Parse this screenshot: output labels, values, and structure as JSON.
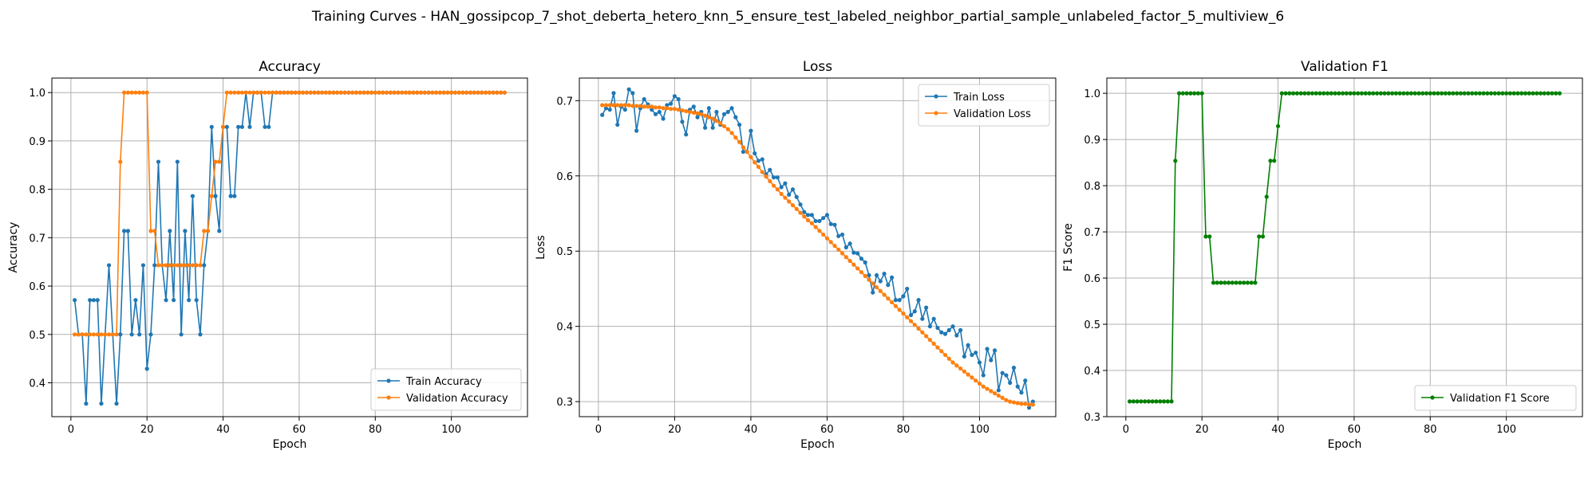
{
  "suptitle": "Training Curves - HAN_gossipcop_7_shot_deberta_hetero_knn_5_ensure_test_labeled_neighbor_partial_sample_unlabeled_factor_5_multiview_6",
  "colors": {
    "blue": "#1f77b4",
    "orange": "#ff7f0e",
    "green": "#008000",
    "grid": "#b0b0b0"
  },
  "chart_data": [
    {
      "type": "line",
      "title": "Accuracy",
      "xlabel": "Epoch",
      "ylabel": "Accuracy",
      "xlim": [
        -5,
        120
      ],
      "ylim": [
        0.33,
        1.03
      ],
      "xticks": [
        0,
        20,
        40,
        60,
        80,
        100
      ],
      "yticks": [
        0.4,
        0.5,
        0.6,
        0.7,
        0.8,
        0.9,
        1.0
      ],
      "ytick_labels": [
        "0.4",
        "0.5",
        "0.6",
        "0.7",
        "0.8",
        "0.9",
        "1.0"
      ],
      "grid": true,
      "legend": "lower-right",
      "series": [
        {
          "name": "Train Accuracy",
          "color": "#1f77b4",
          "x_start": 1,
          "values": [
            0.571,
            0.5,
            0.5,
            0.357,
            0.571,
            0.571,
            0.571,
            0.357,
            0.5,
            0.643,
            0.5,
            0.357,
            0.5,
            0.714,
            0.714,
            0.5,
            0.571,
            0.5,
            0.643,
            0.429,
            0.5,
            0.643,
            0.857,
            0.643,
            0.571,
            0.714,
            0.571,
            0.857,
            0.5,
            0.714,
            0.571,
            0.786,
            0.571,
            0.5,
            0.643,
            0.714,
            0.929,
            0.786,
            0.714,
            0.929,
            0.929,
            0.786,
            0.786,
            0.929,
            0.929,
            1.0,
            0.929,
            1.0,
            1.0,
            1.0,
            0.929,
            0.929,
            1.0,
            1.0,
            1.0,
            1.0,
            1.0,
            1.0,
            1.0,
            1.0,
            1.0,
            1.0,
            1.0,
            1.0,
            1.0,
            1.0,
            1.0,
            1.0,
            1.0,
            1.0,
            1.0,
            1.0,
            1.0,
            1.0,
            1.0,
            1.0,
            1.0,
            1.0,
            1.0,
            1.0,
            1.0,
            1.0,
            1.0,
            1.0,
            1.0,
            1.0,
            1.0,
            1.0,
            1.0,
            1.0,
            1.0,
            1.0,
            1.0,
            1.0,
            1.0,
            1.0,
            1.0,
            1.0,
            1.0,
            1.0,
            1.0,
            1.0,
            1.0,
            1.0,
            1.0,
            1.0,
            1.0,
            1.0,
            1.0,
            1.0,
            1.0,
            1.0,
            1.0,
            1.0
          ]
        },
        {
          "name": "Validation Accuracy",
          "color": "#ff7f0e",
          "x_start": 1,
          "values": [
            0.5,
            0.5,
            0.5,
            0.5,
            0.5,
            0.5,
            0.5,
            0.5,
            0.5,
            0.5,
            0.5,
            0.5,
            0.857,
            1.0,
            1.0,
            1.0,
            1.0,
            1.0,
            1.0,
            1.0,
            0.714,
            0.714,
            0.643,
            0.643,
            0.643,
            0.643,
            0.643,
            0.643,
            0.643,
            0.643,
            0.643,
            0.643,
            0.643,
            0.643,
            0.714,
            0.714,
            0.786,
            0.857,
            0.857,
            0.929,
            1.0,
            1.0,
            1.0,
            1.0,
            1.0,
            1.0,
            1.0,
            1.0,
            1.0,
            1.0,
            1.0,
            1.0,
            1.0,
            1.0,
            1.0,
            1.0,
            1.0,
            1.0,
            1.0,
            1.0,
            1.0,
            1.0,
            1.0,
            1.0,
            1.0,
            1.0,
            1.0,
            1.0,
            1.0,
            1.0,
            1.0,
            1.0,
            1.0,
            1.0,
            1.0,
            1.0,
            1.0,
            1.0,
            1.0,
            1.0,
            1.0,
            1.0,
            1.0,
            1.0,
            1.0,
            1.0,
            1.0,
            1.0,
            1.0,
            1.0,
            1.0,
            1.0,
            1.0,
            1.0,
            1.0,
            1.0,
            1.0,
            1.0,
            1.0,
            1.0,
            1.0,
            1.0,
            1.0,
            1.0,
            1.0,
            1.0,
            1.0,
            1.0,
            1.0,
            1.0,
            1.0,
            1.0,
            1.0,
            1.0
          ]
        }
      ]
    },
    {
      "type": "line",
      "title": "Loss",
      "xlabel": "Epoch",
      "ylabel": "Loss",
      "xlim": [
        -5,
        120
      ],
      "ylim": [
        0.28,
        0.73
      ],
      "xticks": [
        0,
        20,
        40,
        60,
        80,
        100
      ],
      "yticks": [
        0.3,
        0.4,
        0.5,
        0.6,
        0.7
      ],
      "ytick_labels": [
        "0.3",
        "0.4",
        "0.5",
        "0.6",
        "0.7"
      ],
      "grid": true,
      "legend": "upper-right",
      "series": [
        {
          "name": "Train Loss",
          "color": "#1f77b4",
          "x_start": 1,
          "values": [
            0.681,
            0.69,
            0.688,
            0.71,
            0.668,
            0.692,
            0.688,
            0.715,
            0.71,
            0.66,
            0.69,
            0.702,
            0.695,
            0.688,
            0.682,
            0.685,
            0.676,
            0.694,
            0.696,
            0.706,
            0.702,
            0.672,
            0.655,
            0.688,
            0.692,
            0.678,
            0.685,
            0.664,
            0.69,
            0.664,
            0.685,
            0.668,
            0.682,
            0.685,
            0.69,
            0.678,
            0.668,
            0.632,
            0.632,
            0.66,
            0.63,
            0.62,
            0.622,
            0.602,
            0.608,
            0.598,
            0.598,
            0.585,
            0.59,
            0.575,
            0.582,
            0.572,
            0.562,
            0.552,
            0.548,
            0.548,
            0.54,
            0.54,
            0.544,
            0.548,
            0.536,
            0.535,
            0.52,
            0.522,
            0.505,
            0.51,
            0.498,
            0.497,
            0.49,
            0.485,
            0.468,
            0.445,
            0.468,
            0.46,
            0.47,
            0.455,
            0.465,
            0.435,
            0.435,
            0.44,
            0.45,
            0.415,
            0.42,
            0.435,
            0.41,
            0.425,
            0.4,
            0.41,
            0.398,
            0.392,
            0.39,
            0.395,
            0.4,
            0.388,
            0.395,
            0.36,
            0.375,
            0.362,
            0.365,
            0.352,
            0.335,
            0.37,
            0.355,
            0.368,
            0.315,
            0.338,
            0.335,
            0.325,
            0.345,
            0.32,
            0.312,
            0.328,
            0.292,
            0.3
          ]
        },
        {
          "name": "Validation Loss",
          "color": "#ff7f0e",
          "x_start": 1,
          "values": [
            0.694,
            0.694,
            0.694,
            0.694,
            0.694,
            0.694,
            0.694,
            0.694,
            0.693,
            0.693,
            0.693,
            0.692,
            0.692,
            0.692,
            0.691,
            0.691,
            0.69,
            0.69,
            0.689,
            0.689,
            0.688,
            0.687,
            0.686,
            0.685,
            0.684,
            0.683,
            0.682,
            0.68,
            0.678,
            0.676,
            0.673,
            0.67,
            0.666,
            0.662,
            0.657,
            0.651,
            0.645,
            0.638,
            0.632,
            0.625,
            0.618,
            0.612,
            0.605,
            0.599,
            0.593,
            0.587,
            0.582,
            0.576,
            0.571,
            0.566,
            0.561,
            0.556,
            0.551,
            0.546,
            0.541,
            0.537,
            0.532,
            0.527,
            0.522,
            0.517,
            0.512,
            0.507,
            0.502,
            0.497,
            0.492,
            0.487,
            0.482,
            0.477,
            0.472,
            0.467,
            0.462,
            0.457,
            0.452,
            0.447,
            0.442,
            0.437,
            0.432,
            0.427,
            0.422,
            0.417,
            0.412,
            0.407,
            0.402,
            0.397,
            0.392,
            0.387,
            0.382,
            0.377,
            0.372,
            0.367,
            0.362,
            0.357,
            0.352,
            0.348,
            0.344,
            0.34,
            0.336,
            0.332,
            0.328,
            0.324,
            0.32,
            0.317,
            0.314,
            0.311,
            0.308,
            0.305,
            0.302,
            0.3,
            0.299,
            0.298,
            0.297,
            0.297,
            0.296,
            0.296
          ]
        }
      ]
    },
    {
      "type": "line",
      "title": "Validation F1",
      "xlabel": "Epoch",
      "ylabel": "F1 Score",
      "xlim": [
        -5,
        120
      ],
      "ylim": [
        0.3,
        1.033
      ],
      "xticks": [
        0,
        20,
        40,
        60,
        80,
        100
      ],
      "yticks": [
        0.3,
        0.4,
        0.5,
        0.6,
        0.7,
        0.8,
        0.9,
        1.0
      ],
      "ytick_labels": [
        "0.3",
        "0.4",
        "0.5",
        "0.6",
        "0.7",
        "0.8",
        "0.9",
        "1.0"
      ],
      "grid": true,
      "legend": "lower-right",
      "series": [
        {
          "name": "Validation F1 Score",
          "color": "#008000",
          "x_start": 1,
          "values": [
            0.333,
            0.333,
            0.333,
            0.333,
            0.333,
            0.333,
            0.333,
            0.333,
            0.333,
            0.333,
            0.333,
            0.333,
            0.854,
            1.0,
            1.0,
            1.0,
            1.0,
            1.0,
            1.0,
            1.0,
            0.69,
            0.69,
            0.59,
            0.59,
            0.59,
            0.59,
            0.59,
            0.59,
            0.59,
            0.59,
            0.59,
            0.59,
            0.59,
            0.59,
            0.69,
            0.69,
            0.776,
            0.854,
            0.854,
            0.929,
            1.0,
            1.0,
            1.0,
            1.0,
            1.0,
            1.0,
            1.0,
            1.0,
            1.0,
            1.0,
            1.0,
            1.0,
            1.0,
            1.0,
            1.0,
            1.0,
            1.0,
            1.0,
            1.0,
            1.0,
            1.0,
            1.0,
            1.0,
            1.0,
            1.0,
            1.0,
            1.0,
            1.0,
            1.0,
            1.0,
            1.0,
            1.0,
            1.0,
            1.0,
            1.0,
            1.0,
            1.0,
            1.0,
            1.0,
            1.0,
            1.0,
            1.0,
            1.0,
            1.0,
            1.0,
            1.0,
            1.0,
            1.0,
            1.0,
            1.0,
            1.0,
            1.0,
            1.0,
            1.0,
            1.0,
            1.0,
            1.0,
            1.0,
            1.0,
            1.0,
            1.0,
            1.0,
            1.0,
            1.0,
            1.0,
            1.0,
            1.0,
            1.0,
            1.0,
            1.0,
            1.0,
            1.0,
            1.0,
            1.0
          ]
        }
      ]
    }
  ]
}
